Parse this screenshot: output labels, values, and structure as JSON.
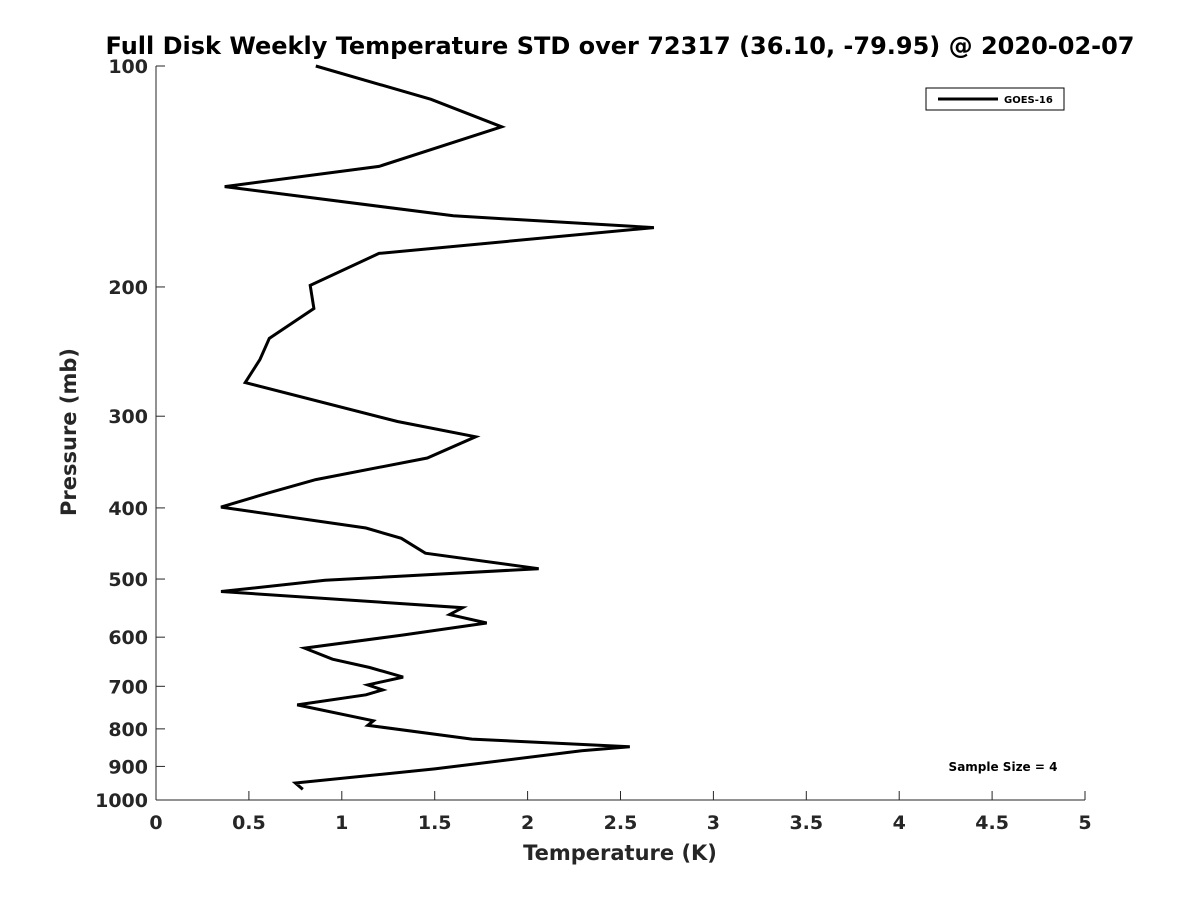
{
  "chart_data": {
    "type": "line",
    "title": "Full Disk Weekly Temperature STD over 72317 (36.10, -79.95) @ 2020-02-07",
    "xlabel": "Temperature (K)",
    "ylabel": "Pressure (mb)",
    "xlim": [
      0,
      5
    ],
    "ylim": [
      100,
      1000
    ],
    "y_scale": "log",
    "y_reversed": true,
    "x_ticks": [
      "0",
      "0.5",
      "1",
      "1.5",
      "2",
      "2.5",
      "3",
      "3.5",
      "4",
      "4.5",
      "5"
    ],
    "y_ticks": [
      "100",
      "200",
      "300",
      "400",
      "500",
      "600",
      "700",
      "800",
      "900",
      "1000"
    ],
    "grid": false,
    "legend_position": "top-right",
    "annotation": "Sample Size = 4",
    "series": [
      {
        "name": "GOES-16",
        "color": "#000000",
        "points": [
          [
            0.86,
            100
          ],
          [
            1.48,
            111
          ],
          [
            1.86,
            121
          ],
          [
            1.2,
            137
          ],
          [
            0.37,
            146
          ],
          [
            1.6,
            160
          ],
          [
            2.68,
            166
          ],
          [
            1.2,
            180
          ],
          [
            0.83,
            199
          ],
          [
            0.85,
            214
          ],
          [
            0.61,
            235
          ],
          [
            0.56,
            251
          ],
          [
            0.48,
            270
          ],
          [
            1.3,
            305
          ],
          [
            1.72,
            320
          ],
          [
            1.46,
            342
          ],
          [
            0.86,
            366
          ],
          [
            0.6,
            382
          ],
          [
            0.35,
            399
          ],
          [
            1.13,
            426
          ],
          [
            1.32,
            440
          ],
          [
            1.45,
            461
          ],
          [
            2.06,
            484
          ],
          [
            0.91,
            502
          ],
          [
            0.35,
            520
          ],
          [
            1.65,
            547
          ],
          [
            1.58,
            559
          ],
          [
            1.78,
            574
          ],
          [
            1.33,
            596
          ],
          [
            0.8,
            621
          ],
          [
            0.95,
            643
          ],
          [
            1.15,
            660
          ],
          [
            1.33,
            680
          ],
          [
            1.14,
            697
          ],
          [
            1.22,
            708
          ],
          [
            1.13,
            719
          ],
          [
            0.76,
            742
          ],
          [
            1.17,
            780
          ],
          [
            1.14,
            791
          ],
          [
            1.7,
            826
          ],
          [
            2.55,
            846
          ],
          [
            2.29,
            857
          ],
          [
            1.5,
            907
          ],
          [
            0.75,
            948
          ],
          [
            0.79,
            967
          ]
        ]
      }
    ]
  }
}
